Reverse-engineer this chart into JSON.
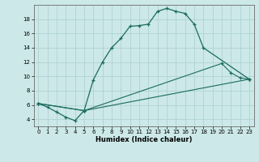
{
  "xlabel": "Humidex (Indice chaleur)",
  "xlim": [
    -0.5,
    23.5
  ],
  "ylim": [
    3.0,
    20.0
  ],
  "yticks": [
    4,
    6,
    8,
    10,
    12,
    14,
    16,
    18
  ],
  "xticks": [
    0,
    1,
    2,
    3,
    4,
    5,
    6,
    7,
    8,
    9,
    10,
    11,
    12,
    13,
    14,
    15,
    16,
    17,
    18,
    19,
    20,
    21,
    22,
    23
  ],
  "bg_color": "#cce8e8",
  "grid_color": "#aacfcf",
  "line_color": "#1a6b5e",
  "line1_x": [
    0,
    1,
    2,
    3,
    4,
    5,
    6,
    7,
    8,
    9,
    10,
    11,
    12,
    13,
    14,
    15,
    16,
    17,
    18,
    23
  ],
  "line1_y": [
    6.2,
    5.7,
    5.0,
    4.3,
    3.8,
    5.2,
    9.5,
    12.0,
    14.0,
    15.3,
    17.0,
    17.1,
    17.3,
    19.1,
    19.5,
    19.1,
    18.8,
    17.3,
    14.0,
    9.6
  ],
  "line2_x": [
    0,
    5,
    23
  ],
  "line2_y": [
    6.2,
    5.2,
    9.6
  ],
  "line3_x": [
    0,
    5,
    20,
    21,
    22,
    23
  ],
  "line3_y": [
    6.2,
    5.2,
    11.8,
    10.5,
    9.8,
    9.6
  ],
  "title_fontsize": 7,
  "xlabel_fontsize": 6,
  "tick_fontsize": 5
}
